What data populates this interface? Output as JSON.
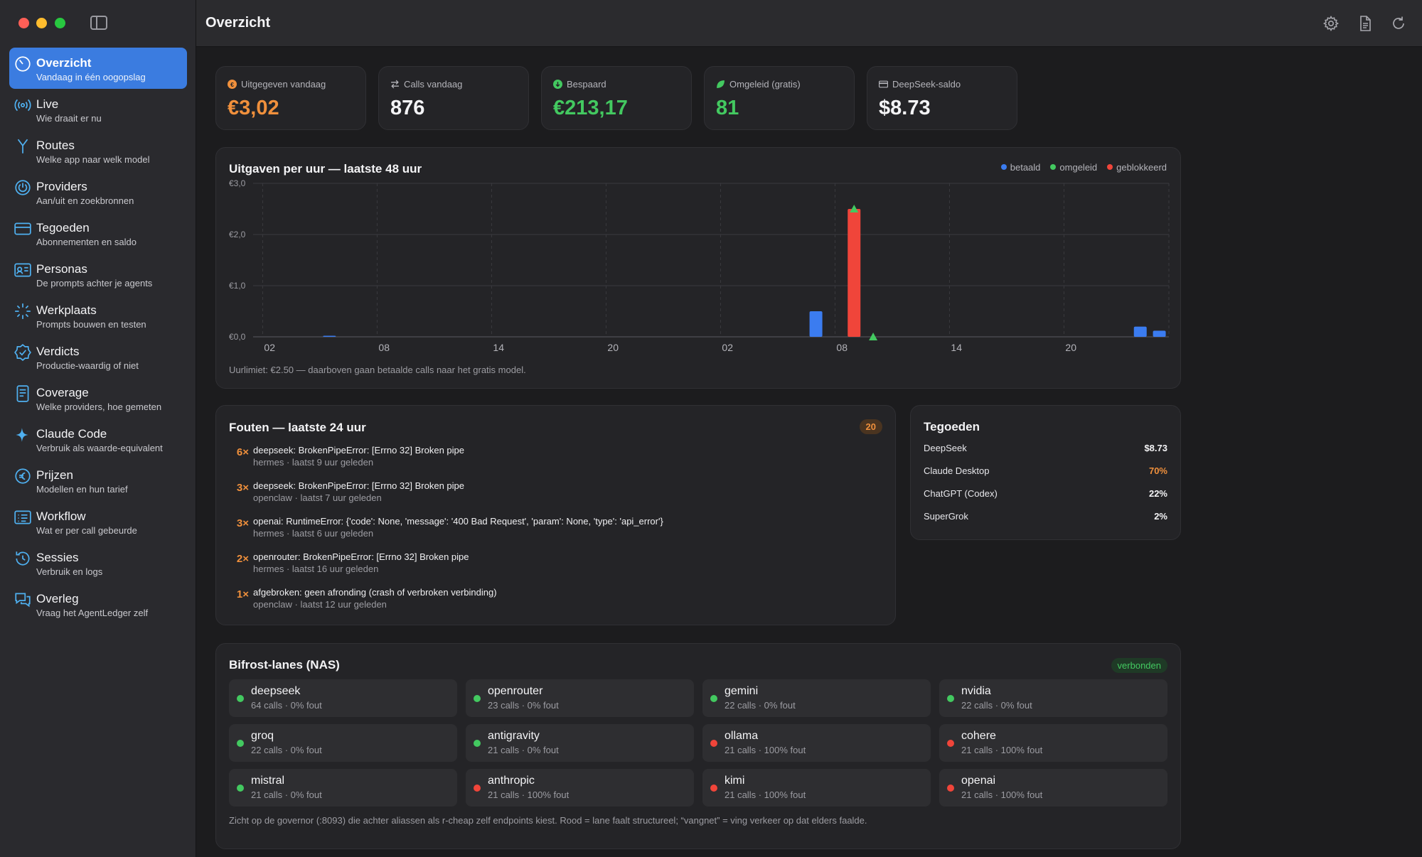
{
  "window": {
    "title": "Overzicht"
  },
  "sidebar": {
    "items": [
      {
        "label": "Overzicht",
        "sub": "Vandaag in één oogopslag",
        "icon": "gauge-icon",
        "active": true
      },
      {
        "label": "Live",
        "sub": "Wie draait er nu",
        "icon": "broadcast-icon"
      },
      {
        "label": "Routes",
        "sub": "Welke app naar welk model",
        "icon": "fork-icon"
      },
      {
        "label": "Providers",
        "sub": "Aan/uit en zoekbronnen",
        "icon": "power-icon"
      },
      {
        "label": "Tegoeden",
        "sub": "Abonnementen en saldo",
        "icon": "credit-card-icon"
      },
      {
        "label": "Personas",
        "sub": "De prompts achter je agents",
        "icon": "id-card-icon"
      },
      {
        "label": "Werkplaats",
        "sub": "Prompts bouwen en testen",
        "icon": "sparkle-burst-icon"
      },
      {
        "label": "Verdicts",
        "sub": "Productie-waardig of niet",
        "icon": "check-seal-icon"
      },
      {
        "label": "Coverage",
        "sub": "Welke providers, hoe gemeten",
        "icon": "document-icon"
      },
      {
        "label": "Claude Code",
        "sub": "Verbruik als waarde-equivalent",
        "icon": "sparkles-icon"
      },
      {
        "label": "Prijzen",
        "sub": "Modellen en hun tarief",
        "icon": "euro-icon"
      },
      {
        "label": "Workflow",
        "sub": "Wat er per call gebeurde",
        "icon": "list-icon"
      },
      {
        "label": "Sessies",
        "sub": "Verbruik en logs",
        "icon": "history-icon"
      },
      {
        "label": "Overleg",
        "sub": "Vraag het AgentLedger zelf",
        "icon": "chat-bubbles-icon"
      }
    ]
  },
  "stats": [
    {
      "label": "Uitgegeven vandaag",
      "value": "€3,02",
      "color": "#f0903c",
      "icon": "euro-coin-icon"
    },
    {
      "label": "Calls vandaag",
      "value": "876",
      "color": "#f4f4f6",
      "icon": "arrows-swap-icon"
    },
    {
      "label": "Bespaard",
      "value": "€213,17",
      "color": "#43c960",
      "icon": "arrow-down-circle-icon"
    },
    {
      "label": "Omgeleid (gratis)",
      "value": "81",
      "color": "#43c960",
      "icon": "leaf-icon"
    },
    {
      "label": "DeepSeek-saldo",
      "value": "$8.73",
      "color": "#f4f4f6",
      "icon": "card-icon"
    }
  ],
  "chart_card": {
    "title": "Uitgaven per uur — laatste 48 uur",
    "note": "Uurlimiet: €2.50 — daarboven gaan betaalde calls naar het gratis model."
  },
  "chart_data": {
    "type": "bar",
    "title": "Uitgaven per uur — laatste 48 uur",
    "x_tick_labels": [
      "02",
      "08",
      "14",
      "20",
      "02",
      "08",
      "14",
      "20"
    ],
    "y_tick_labels": [
      "€0,0",
      "€1,0",
      "€2,0",
      "€3,0"
    ],
    "ylim": [
      0,
      3.0
    ],
    "hours": 48,
    "legend_position": "top-right",
    "series": [
      {
        "name": "betaald",
        "color": "#3b7cf0",
        "points": [
          {
            "hour": 4,
            "value": 0.02
          },
          {
            "hour": 29.5,
            "value": 0.5
          },
          {
            "hour": 46.5,
            "value": 0.2
          },
          {
            "hour": 47.5,
            "value": 0.12
          }
        ]
      },
      {
        "name": "omgeleid",
        "color": "#43c960",
        "markers": [
          {
            "hour": 31.5,
            "value": 2.5
          },
          {
            "hour": 32.5,
            "value": 0.0
          }
        ]
      },
      {
        "name": "geblokkeerd",
        "color": "#f0453a",
        "points": [
          {
            "hour": 31.5,
            "value": 2.5
          }
        ]
      }
    ],
    "grid": true
  },
  "errors_card": {
    "title": "Fouten — laatste 24 uur",
    "badge": "20",
    "items": [
      {
        "count": "6×",
        "message": "deepseek: BrokenPipeError: [Errno 32] Broken pipe",
        "meta": "hermes · laatst 9 uur geleden"
      },
      {
        "count": "3×",
        "message": "deepseek: BrokenPipeError: [Errno 32] Broken pipe",
        "meta": "openclaw · laatst 7 uur geleden"
      },
      {
        "count": "3×",
        "message": "openai: RuntimeError: {'code': None, 'message': '400 Bad Request', 'param': None, 'type': 'api_error'}",
        "meta": "hermes · laatst 6 uur geleden"
      },
      {
        "count": "2×",
        "message": "openrouter: BrokenPipeError: [Errno 32] Broken pipe",
        "meta": "hermes · laatst 16 uur geleden"
      },
      {
        "count": "1×",
        "message": "afgebroken: geen afronding (crash of verbroken verbinding)",
        "meta": "openclaw · laatst 12 uur geleden"
      }
    ]
  },
  "credits_card": {
    "title": "Tegoeden",
    "rows": [
      {
        "name": "DeepSeek",
        "value": "$8.73",
        "color": "#f4f4f6"
      },
      {
        "name": "Claude Desktop",
        "value": "70%",
        "color": "#f0903c"
      },
      {
        "name": "ChatGPT (Codex)",
        "value": "22%",
        "color": "#f4f4f6"
      },
      {
        "name": "SuperGrok",
        "value": "2%",
        "color": "#f4f4f6"
      }
    ]
  },
  "lanes_card": {
    "title": "Bifrost-lanes (NAS)",
    "status": "verbonden",
    "note": "Zicht op de governor (:8093) die achter aliassen als r-cheap zelf endpoints kiest. Rood = lane faalt structureel; “vangnet” = ving verkeer op dat elders faalde.",
    "lanes": [
      {
        "name": "deepseek",
        "meta": "64 calls · 0% fout",
        "status": "ok"
      },
      {
        "name": "openrouter",
        "meta": "23 calls · 0% fout",
        "status": "ok"
      },
      {
        "name": "gemini",
        "meta": "22 calls · 0% fout",
        "status": "ok"
      },
      {
        "name": "nvidia",
        "meta": "22 calls · 0% fout",
        "status": "ok"
      },
      {
        "name": "groq",
        "meta": "22 calls · 0% fout",
        "status": "ok"
      },
      {
        "name": "antigravity",
        "meta": "21 calls · 0% fout",
        "status": "ok"
      },
      {
        "name": "ollama",
        "meta": "21 calls · 100% fout",
        "status": "fail"
      },
      {
        "name": "cohere",
        "meta": "21 calls · 100% fout",
        "status": "fail"
      },
      {
        "name": "mistral",
        "meta": "21 calls · 0% fout",
        "status": "ok"
      },
      {
        "name": "anthropic",
        "meta": "21 calls · 100% fout",
        "status": "fail"
      },
      {
        "name": "kimi",
        "meta": "21 calls · 100% fout",
        "status": "fail"
      },
      {
        "name": "openai",
        "meta": "21 calls · 100% fout",
        "status": "fail"
      }
    ]
  },
  "colors": {
    "accent": "#3b7ce0",
    "ok": "#43c960",
    "fail": "#f0453a",
    "warn": "#f0903c"
  }
}
